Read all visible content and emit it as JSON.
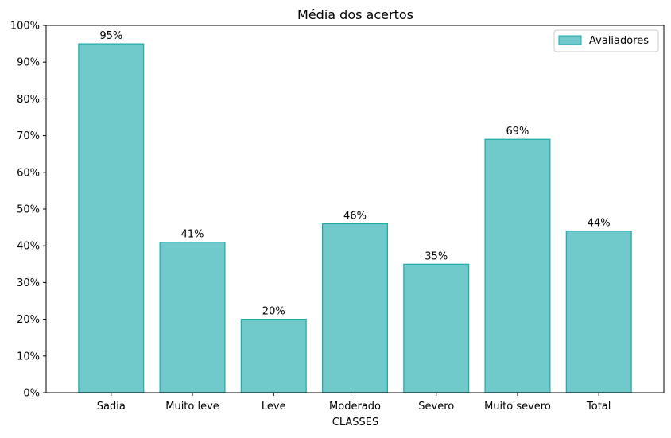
{
  "chart_data": {
    "type": "bar",
    "title": "Média dos acertos",
    "xlabel": "CLASSES",
    "ylabel": "",
    "categories": [
      "Sadia",
      "Muito leve",
      "Leve",
      "Moderado",
      "Severo",
      "Muito severo",
      "Total"
    ],
    "series": [
      {
        "name": "Avaliadores",
        "values": [
          95,
          41,
          20,
          46,
          35,
          69,
          44
        ]
      }
    ],
    "data_labels": [
      "95%",
      "41%",
      "20%",
      "46%",
      "35%",
      "69%",
      "44%"
    ],
    "ylim": [
      0,
      100
    ],
    "yticks": [
      0,
      10,
      20,
      30,
      40,
      50,
      60,
      70,
      80,
      90,
      100
    ],
    "ytick_labels": [
      "0%",
      "10%",
      "20%",
      "30%",
      "40%",
      "50%",
      "60%",
      "70%",
      "80%",
      "90%",
      "100%"
    ],
    "grid": false,
    "legend_position": "top-right",
    "colors": {
      "bar_fill": "#70c9ca",
      "bar_edge": "#20a9a9"
    }
  }
}
